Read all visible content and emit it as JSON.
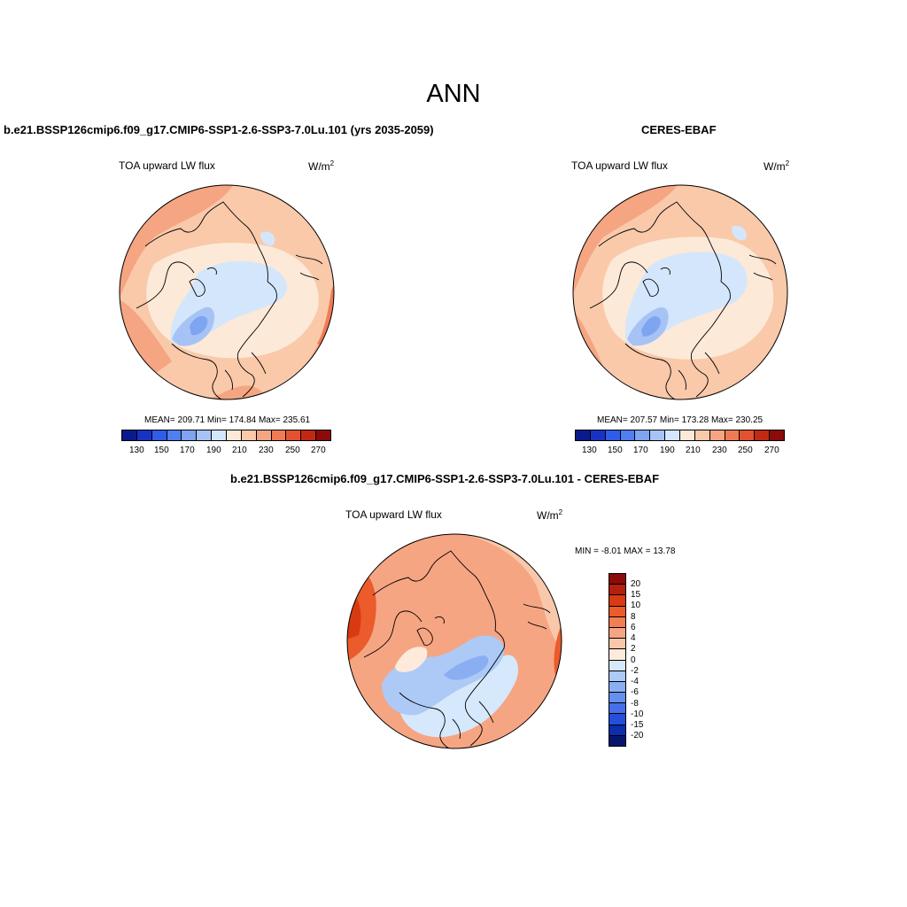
{
  "page": {
    "title": "ANN"
  },
  "panels": {
    "model": {
      "title": "b.e21.BSSP126cmip6.f09_g17.CMIP6-SSP1-2.6-SSP3-7.0Lu.101 (yrs 2035-2059)",
      "variable": "TOA upward LW flux",
      "unit": "W/m",
      "unit_exp": "2",
      "stats": "MEAN= 209.71  Min= 174.84  Max= 235.61",
      "colorbar_ticks": [
        "130",
        "150",
        "170",
        "190",
        "210",
        "230",
        "250",
        "270"
      ]
    },
    "obs": {
      "title": "CERES-EBAF",
      "variable": "TOA upward LW flux",
      "unit": "W/m",
      "unit_exp": "2",
      "stats": "MEAN= 207.57  Min= 173.28  Max= 230.25",
      "colorbar_ticks": [
        "130",
        "150",
        "170",
        "190",
        "210",
        "230",
        "250",
        "270"
      ]
    },
    "diff": {
      "title": "b.e21.BSSP126cmip6.f09_g17.CMIP6-SSP1-2.6-SSP3-7.0Lu.101 - CERES-EBAF",
      "variable": "TOA upward LW flux",
      "unit": "W/m",
      "unit_exp": "2",
      "minmax": "MIN =  -8.01 MAX =  13.78",
      "colorbar_ticks": [
        "20",
        "15",
        "10",
        "8",
        "6",
        "4",
        "2",
        "0",
        "-2",
        "-4",
        "-6",
        "-8",
        "-10",
        "-15",
        "-20"
      ]
    }
  },
  "colors": {
    "abs_scale": [
      "#0a1a8c",
      "#1833c4",
      "#2f5ce8",
      "#4f7ff0",
      "#7ea4f2",
      "#a7c3f6",
      "#d4e6fb",
      "#fde9d8",
      "#f9c9aa",
      "#f5a581",
      "#ef7b54",
      "#e35230",
      "#c02a12",
      "#8b0a0a"
    ],
    "diff_scale": [
      "#8b0a0a",
      "#b3200c",
      "#d83a12",
      "#eb5b2c",
      "#f27f52",
      "#f6a583",
      "#f9c8aa",
      "#fdeadb",
      "#d6e8fb",
      "#adc9f6",
      "#8aaef2",
      "#6690ee",
      "#4670ea",
      "#234fdc",
      "#0c2dad",
      "#051670"
    ]
  }
}
